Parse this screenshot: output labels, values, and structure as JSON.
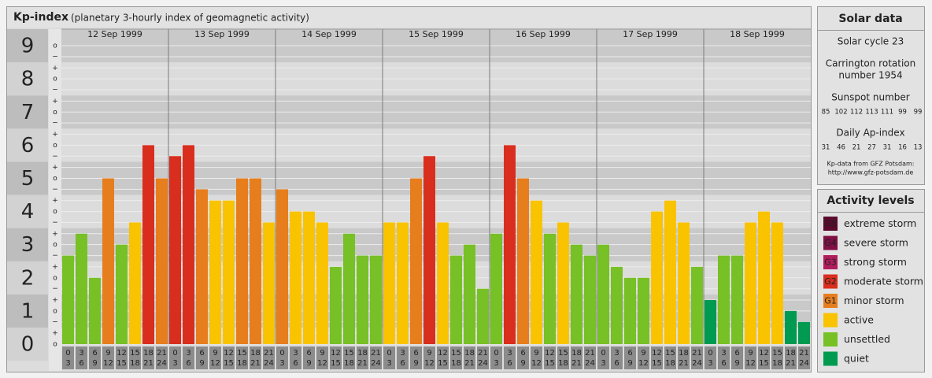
{
  "chart_data": {
    "type": "bar",
    "title": "Kp-index",
    "subtitle": "(planetary 3-hourly index of geomagnetic activity)",
    "ylim": [
      0,
      9.5
    ],
    "yticks": [
      0,
      1,
      2,
      3,
      4,
      5,
      6,
      7,
      8,
      9
    ],
    "minor_yticks": [
      {
        "value": 0,
        "label": "o"
      },
      {
        "value": 0.33,
        "label": "+"
      },
      {
        "value": 0.67,
        "label": "−"
      },
      {
        "value": 1,
        "label": "o"
      },
      {
        "value": 1.33,
        "label": "+"
      },
      {
        "value": 1.67,
        "label": "−"
      },
      {
        "value": 2,
        "label": "o"
      },
      {
        "value": 2.33,
        "label": "+"
      },
      {
        "value": 2.67,
        "label": "−"
      },
      {
        "value": 3,
        "label": "o"
      },
      {
        "value": 3.33,
        "label": "+"
      },
      {
        "value": 3.67,
        "label": "−"
      },
      {
        "value": 4,
        "label": "o"
      },
      {
        "value": 4.33,
        "label": "+"
      },
      {
        "value": 4.67,
        "label": "−"
      },
      {
        "value": 5,
        "label": "o"
      },
      {
        "value": 5.33,
        "label": "+"
      },
      {
        "value": 5.67,
        "label": "−"
      },
      {
        "value": 6,
        "label": "o"
      },
      {
        "value": 6.33,
        "label": "+"
      },
      {
        "value": 6.67,
        "label": "−"
      },
      {
        "value": 7,
        "label": "o"
      },
      {
        "value": 7.33,
        "label": "+"
      },
      {
        "value": 7.67,
        "label": "−"
      },
      {
        "value": 8,
        "label": "o"
      },
      {
        "value": 8.33,
        "label": "+"
      },
      {
        "value": 8.67,
        "label": "−"
      },
      {
        "value": 9,
        "label": "o"
      }
    ],
    "hours": [
      [
        "0",
        "3"
      ],
      [
        "3",
        "6"
      ],
      [
        "6",
        "9"
      ],
      [
        "9",
        "12"
      ],
      [
        "12",
        "15"
      ],
      [
        "15",
        "18"
      ],
      [
        "18",
        "21"
      ],
      [
        "21",
        "24"
      ]
    ],
    "series": [
      {
        "name": "12 Sep 1999",
        "values": [
          2.67,
          3.33,
          2,
          5,
          3,
          3.67,
          6,
          5
        ],
        "colors": [
          "#77c026",
          "#77c026",
          "#77c026",
          "#e67e1e",
          "#77c026",
          "#f9c300",
          "#d92e1e",
          "#e67e1e"
        ]
      },
      {
        "name": "13 Sep 1999",
        "values": [
          5.67,
          6,
          4.67,
          4.33,
          4.33,
          5,
          5,
          3.67
        ],
        "colors": [
          "#d92e1e",
          "#d92e1e",
          "#e67e1e",
          "#f9c300",
          "#f9c300",
          "#e67e1e",
          "#e67e1e",
          "#f9c300"
        ]
      },
      {
        "name": "14 Sep 1999",
        "values": [
          4.67,
          4,
          4,
          3.67,
          2.33,
          3.33,
          2.67,
          2.67
        ],
        "colors": [
          "#e67e1e",
          "#f9c300",
          "#f9c300",
          "#f9c300",
          "#77c026",
          "#77c026",
          "#77c026",
          "#77c026"
        ]
      },
      {
        "name": "15 Sep 1999",
        "values": [
          3.67,
          3.67,
          5,
          5.67,
          3.67,
          2.67,
          3,
          1.67
        ],
        "colors": [
          "#f9c300",
          "#f9c300",
          "#e67e1e",
          "#d92e1e",
          "#f9c300",
          "#77c026",
          "#77c026",
          "#77c026"
        ]
      },
      {
        "name": "16 Sep 1999",
        "values": [
          3.33,
          6,
          5,
          4.33,
          3.33,
          3.67,
          3,
          2.67
        ],
        "colors": [
          "#77c026",
          "#d92e1e",
          "#e67e1e",
          "#f9c300",
          "#77c026",
          "#f9c300",
          "#77c026",
          "#77c026"
        ]
      },
      {
        "name": "17 Sep 1999",
        "values": [
          3,
          2.33,
          2,
          2,
          4,
          4.33,
          3.67,
          2.33
        ],
        "colors": [
          "#77c026",
          "#77c026",
          "#77c026",
          "#77c026",
          "#f9c300",
          "#f9c300",
          "#f9c300",
          "#77c026"
        ]
      },
      {
        "name": "18 Sep 1999",
        "values": [
          1.33,
          2.67,
          2.67,
          3.67,
          4,
          3.67,
          1,
          0.67
        ],
        "colors": [
          "#009a50",
          "#77c026",
          "#77c026",
          "#f9c300",
          "#f9c300",
          "#f9c300",
          "#009a50",
          "#009a50"
        ]
      }
    ]
  },
  "solar_data": {
    "title": "Solar data",
    "cycle": "Solar cycle 23",
    "carrington": [
      "Carrington rotation",
      "number 1954"
    ],
    "sunspot_title": "Sunspot number",
    "sunspot": [
      85,
      102,
      112,
      113,
      111,
      99,
      99
    ],
    "ap_title": "Daily Ap-index",
    "ap": [
      31,
      46,
      21,
      27,
      31,
      16,
      13
    ],
    "source": [
      "Kp-data from GFZ Potsdam:",
      "http://www.gfz-potsdam.de"
    ]
  },
  "activity_levels": {
    "title": "Activity levels",
    "items": [
      {
        "badge": "G5",
        "label": "extreme storm",
        "color": "#5a0a2c"
      },
      {
        "badge": "G4",
        "label": "severe storm",
        "color": "#7f0f44"
      },
      {
        "badge": "G3",
        "label": "strong storm",
        "color": "#b01d5c"
      },
      {
        "badge": "G2",
        "label": "moderate storm",
        "color": "#d92e1e"
      },
      {
        "badge": "G1",
        "label": "minor storm",
        "color": "#e67e1e"
      },
      {
        "label": "active",
        "color": "#f9c300"
      },
      {
        "label": "unsettled",
        "color": "#77c026"
      },
      {
        "label": "quiet",
        "color": "#009a50"
      }
    ]
  }
}
